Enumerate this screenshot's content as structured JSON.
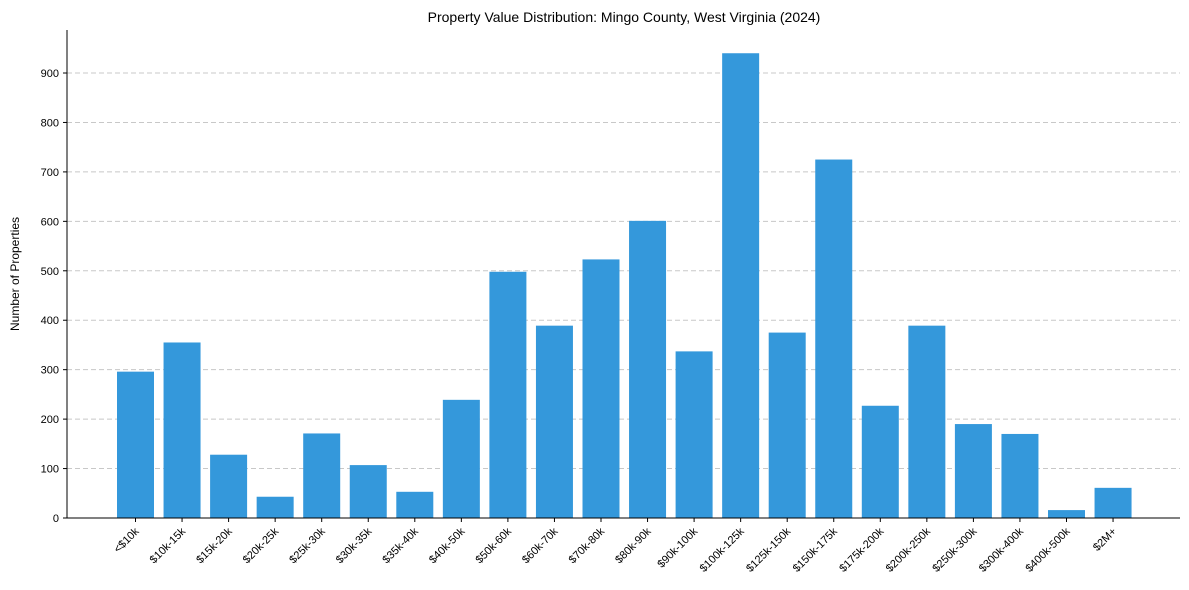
{
  "chart_data": {
    "type": "bar",
    "title": "Property Value Distribution: Mingo County, West Virginia (2024)",
    "xlabel": "",
    "ylabel": "Number of Properties",
    "categories": [
      "<$10k",
      "$10k-15k",
      "$15k-20k",
      "$20k-25k",
      "$25k-30k",
      "$30k-35k",
      "$35k-40k",
      "$40k-50k",
      "$50k-60k",
      "$60k-70k",
      "$70k-80k",
      "$80k-90k",
      "$90k-100k",
      "$100k-125k",
      "$125k-150k",
      "$150k-175k",
      "$175k-200k",
      "$200k-250k",
      "$250k-300k",
      "$300k-400k",
      "$400k-500k",
      "$2M+"
    ],
    "values": [
      296,
      355,
      128,
      43,
      171,
      107,
      53,
      239,
      498,
      389,
      523,
      601,
      337,
      940,
      375,
      725,
      227,
      389,
      190,
      170,
      16,
      61
    ],
    "yticks": [
      0,
      100,
      200,
      300,
      400,
      500,
      600,
      700,
      800,
      900
    ],
    "ylim": [
      0,
      987
    ],
    "grid": "y-dashed",
    "bar_color": "#3498db"
  }
}
